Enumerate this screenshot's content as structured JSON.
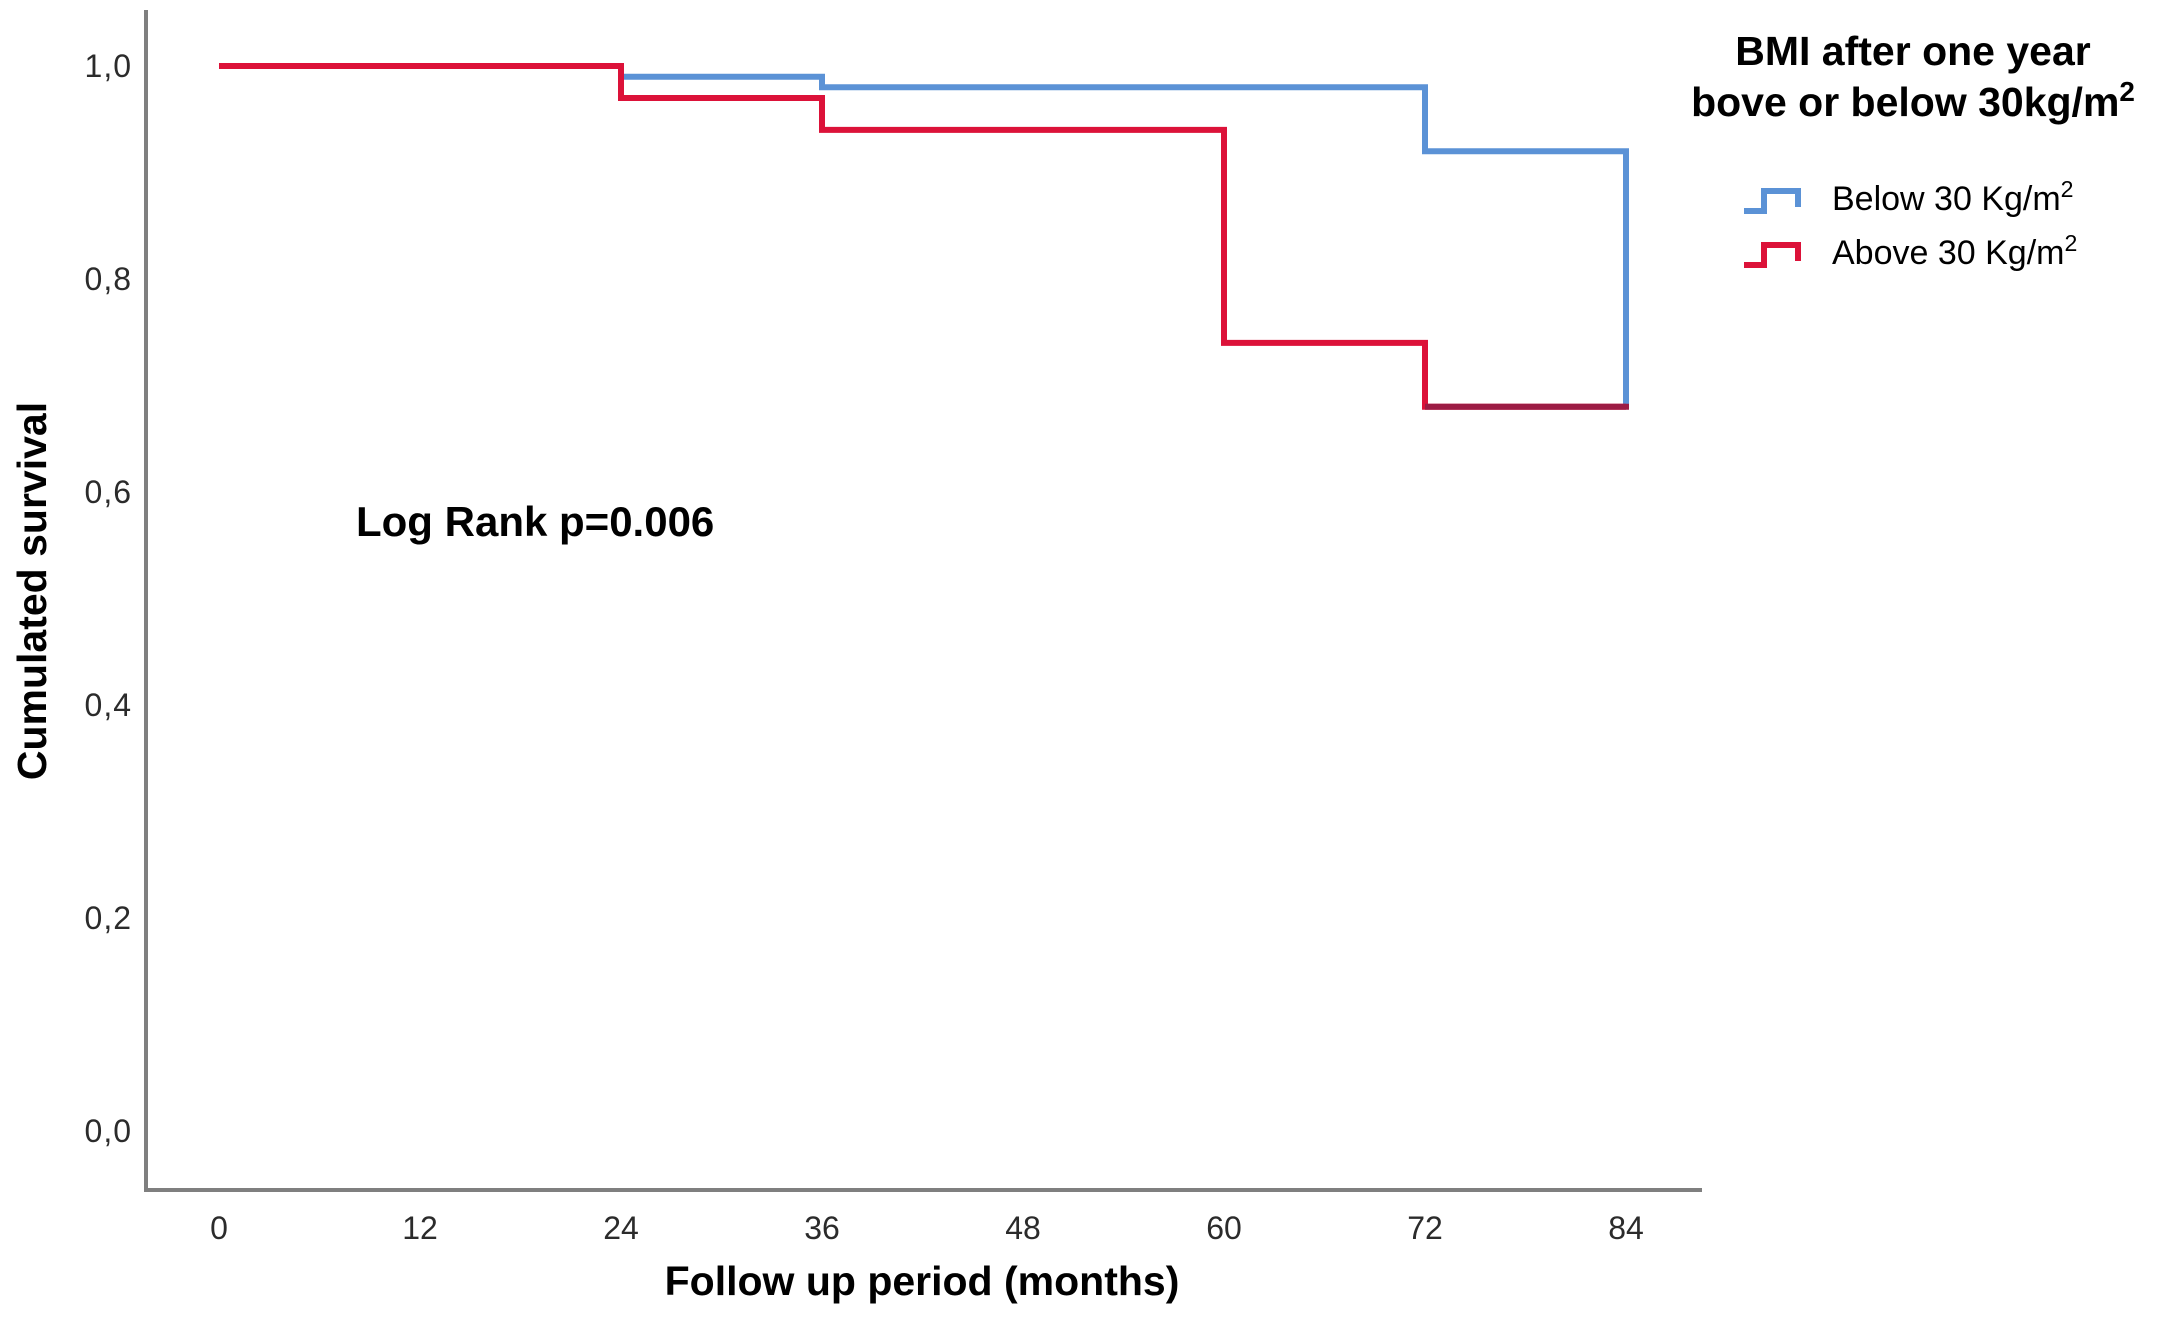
{
  "figure": {
    "y_axis_title": "Cumulated survival",
    "x_axis_title": "Follow up period (months)",
    "annotation": "Log Rank p=0.006",
    "y_ticks": [
      {
        "label": "1,0",
        "value": 1.0
      },
      {
        "label": "0,8",
        "value": 0.8
      },
      {
        "label": "0,6",
        "value": 0.6
      },
      {
        "label": "0,4",
        "value": 0.4
      },
      {
        "label": "0,2",
        "value": 0.2
      },
      {
        "label": "0,0",
        "value": 0.0
      }
    ],
    "x_ticks": [
      {
        "label": "0",
        "value": 0
      },
      {
        "label": "12",
        "value": 12
      },
      {
        "label": "24",
        "value": 24
      },
      {
        "label": "36",
        "value": 36
      },
      {
        "label": "48",
        "value": 48
      },
      {
        "label": "60",
        "value": 60
      },
      {
        "label": "72",
        "value": 72
      },
      {
        "label": "84",
        "value": 84
      }
    ]
  },
  "legend": {
    "title_line1": "BMI after one year",
    "title_line2": "bove or below 30kg/m",
    "title_line2_sup": "2",
    "entries": [
      {
        "label": "Below 30 Kg/m",
        "sup": "2",
        "series": "below_30",
        "color": "#5B92D6"
      },
      {
        "label": "Above 30 Kg/m",
        "sup": "2",
        "series": "above_30",
        "color": "#DC1239"
      }
    ]
  },
  "colors": {
    "below_30_line": "#5B92D6",
    "above_30_line": "#DC1239",
    "final_overlap_segment": "#9C1B44",
    "axis_line": "#7f7f7f",
    "tick_text": "#2b2b2b"
  },
  "chart_data": {
    "type": "line",
    "subtype": "kaplan-meier-step",
    "title": "BMI after one year bove or below 30kg/m2",
    "xlabel": "Follow up period (months)",
    "ylabel": "Cumulated survival",
    "annotation": "Log Rank p=0.006",
    "xlim": [
      0,
      88
    ],
    "ylim": [
      0.0,
      1.0
    ],
    "x_tick_values": [
      0,
      12,
      24,
      36,
      48,
      60,
      72,
      84
    ],
    "y_tick_values": [
      0.0,
      0.2,
      0.4,
      0.6,
      0.8,
      1.0
    ],
    "grid": false,
    "legend_position": "outside-top-right",
    "series": [
      {
        "name": "Below 30 Kg/m2",
        "key": "below_30",
        "color": "#5B92D6",
        "step_points": [
          [
            0,
            1.0
          ],
          [
            24,
            0.99
          ],
          [
            36,
            0.98
          ],
          [
            72,
            0.92
          ],
          [
            84,
            0.68
          ]
        ]
      },
      {
        "name": "Above 30 Kg/m2",
        "key": "above_30",
        "color": "#DC1239",
        "step_points": [
          [
            0,
            1.0
          ],
          [
            24,
            0.97
          ],
          [
            36,
            0.94
          ],
          [
            60,
            0.74
          ],
          [
            72,
            0.68
          ],
          [
            84,
            0.68
          ]
        ]
      }
    ]
  }
}
